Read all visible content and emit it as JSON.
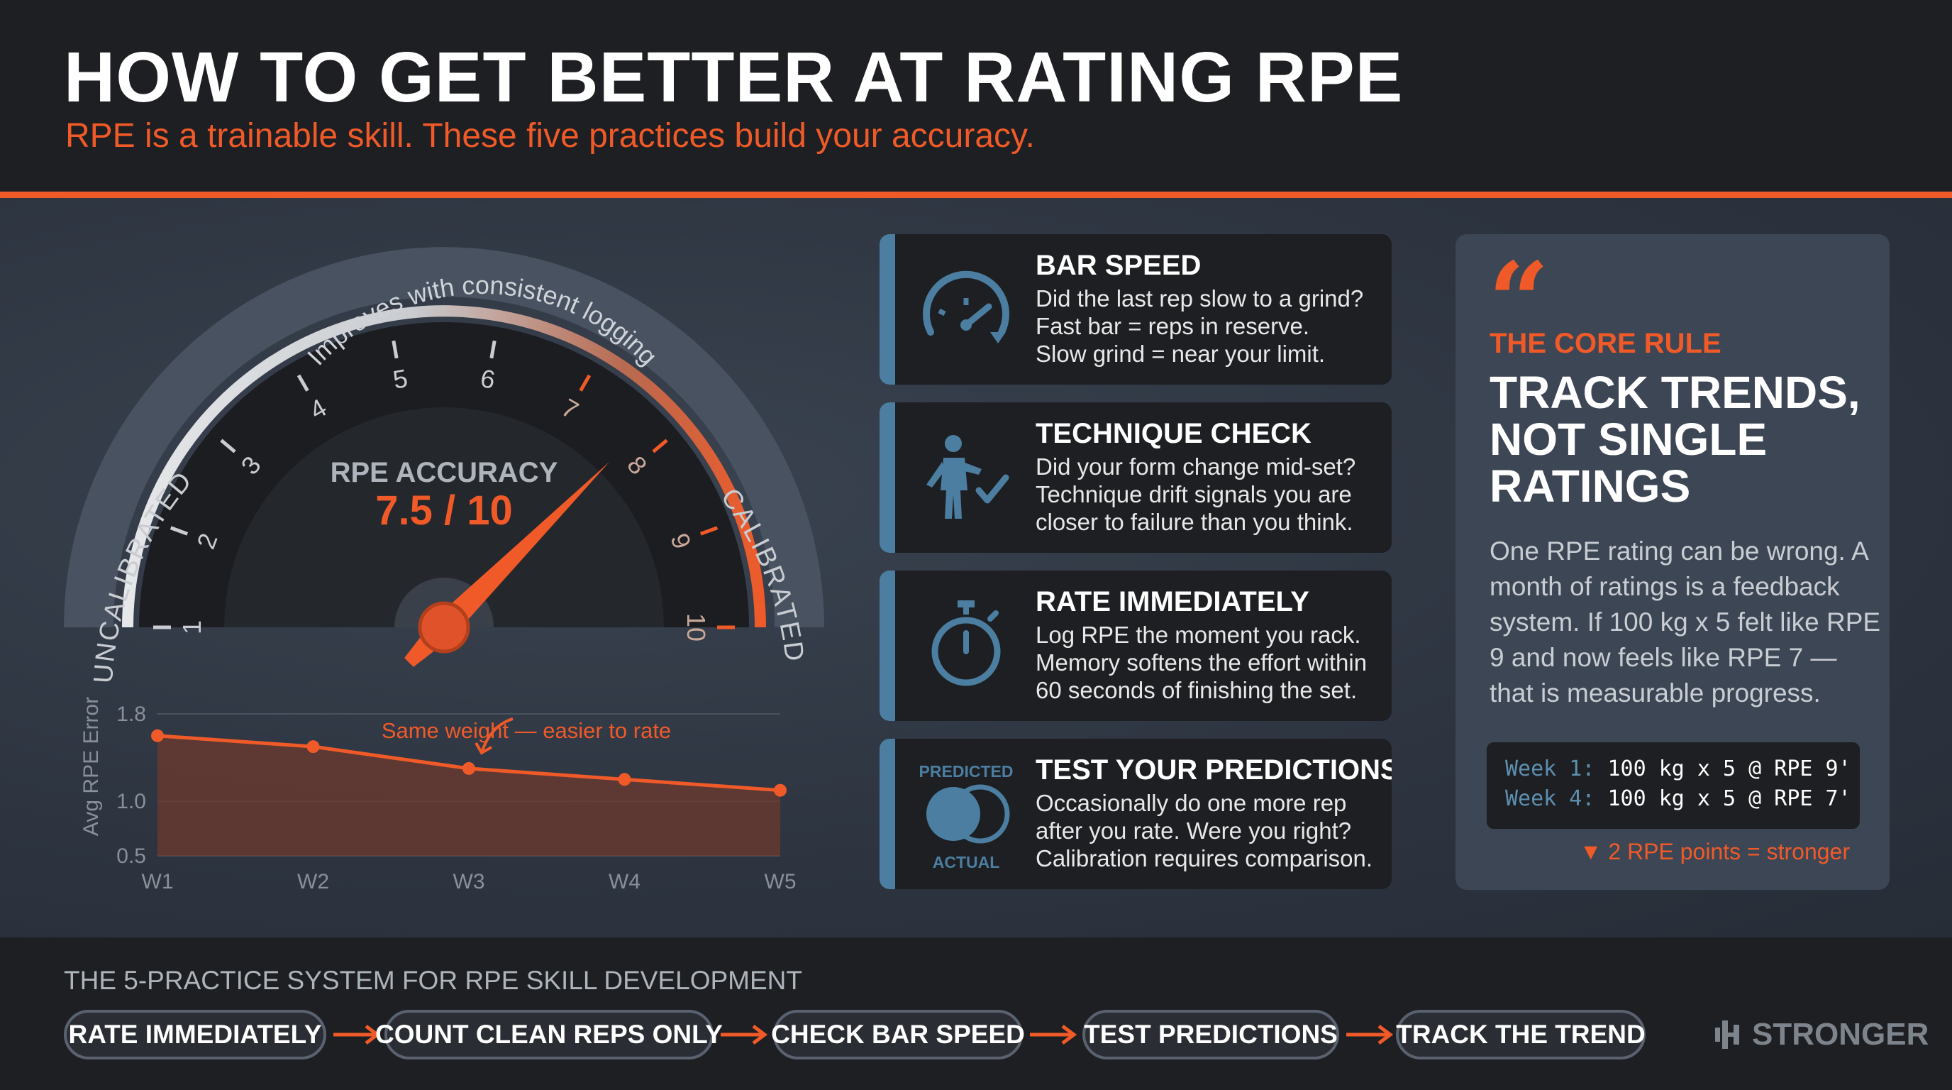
{
  "header": {
    "title": "HOW TO GET BETTER AT RATING RPE",
    "subtitle": "RPE is a trainable skill. These five practices build your accuracy."
  },
  "gauge": {
    "arc_caption": "Improves with consistent logging",
    "left_label": "UNCALIBRATED",
    "right_label": "CALIBRATED",
    "center_label": "RPE ACCURACY",
    "value_text": "7.5 / 10",
    "value": 7.5,
    "max": 10,
    "ticks": [
      "1",
      "2",
      "3",
      "4",
      "5",
      "6",
      "7",
      "8",
      "9",
      "10"
    ],
    "inner_ticks": [
      "1",
      "2",
      "2"
    ]
  },
  "chart_data": {
    "type": "line",
    "ylabel": "Avg RPE Error",
    "categories": [
      "W1",
      "W2",
      "W3",
      "W4",
      "W5"
    ],
    "values": [
      1.6,
      1.5,
      1.3,
      1.2,
      1.1
    ],
    "y_ticks": [
      "1.8",
      "1.0",
      "0.5"
    ],
    "ylim": [
      0.5,
      1.8
    ],
    "annotation": "Same weight — easier to rate",
    "annotation_point": "W3",
    "grid": true
  },
  "cards": [
    {
      "icon": "speedometer-icon",
      "title": "BAR SPEED",
      "lines": [
        "Did the last rep slow to a grind?",
        "Fast bar = reps in reserve.",
        "Slow grind = near your limit."
      ]
    },
    {
      "icon": "person-check-icon",
      "title": "TECHNIQUE CHECK",
      "lines": [
        "Did your form change mid-set?",
        "Technique drift signals you are",
        "closer to failure than you think."
      ]
    },
    {
      "icon": "stopwatch-icon",
      "title": "RATE IMMEDIATELY",
      "lines": [
        "Log RPE the moment you rack.",
        "Memory softens the effort within",
        "60 seconds of finishing the set."
      ]
    },
    {
      "icon": "venn-icon",
      "title": "TEST YOUR PREDICTIONS",
      "icon_top": "PREDICTED",
      "icon_bottom": "ACTUAL",
      "lines": [
        "Occasionally do one more rep",
        "after you rate. Were you right?",
        "Calibration requires comparison."
      ]
    }
  ],
  "core_rule": {
    "quote": "“",
    "label": "THE CORE RULE",
    "heading": [
      "TRACK TRENDS,",
      "NOT SINGLE",
      "RATINGS"
    ],
    "body": [
      "One RPE rating can be wrong. A",
      "month of ratings is a feedback",
      "system. If 100 kg x 5 felt like RPE",
      "9 and now feels like RPE 7 —",
      "that is measurable progress."
    ],
    "log": [
      {
        "key": "Week 1:",
        "value": "100 kg x 5 @ RPE 9'"
      },
      {
        "key": "Week 4:",
        "value": "100 kg x 5 @ RPE 7'"
      }
    ],
    "note": "▼ 2 RPE points = stronger"
  },
  "footer": {
    "label": "THE 5-PRACTICE SYSTEM FOR RPE SKILL DEVELOPMENT",
    "steps": [
      "RATE IMMEDIATELY",
      "COUNT CLEAN REPS ONLY",
      "CHECK BAR SPEED",
      "TEST PREDICTIONS",
      "TRACK THE TREND"
    ],
    "brand": "STRONGER"
  },
  "colors": {
    "accent": "#f05a28",
    "blue": "#4b7ea1",
    "panel": "#1d1f22",
    "background": "#2e3540"
  }
}
